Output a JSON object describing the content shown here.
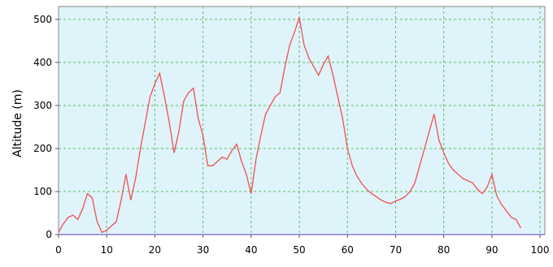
{
  "chart_data": {
    "type": "line",
    "title": "",
    "xlabel": "",
    "ylabel": "Altitude (m)",
    "xlim": [
      0,
      101
    ],
    "ylim": [
      0,
      530
    ],
    "xticks": [
      0,
      10,
      20,
      30,
      40,
      50,
      60,
      70,
      80,
      90,
      100
    ],
    "yticks": [
      0,
      100,
      200,
      300,
      400,
      500
    ],
    "grid": true,
    "legend": "none",
    "colors": {
      "line": "#f05050",
      "plot_background": "#dff3fb",
      "grid": "#5cbf5c",
      "baseline": "#8a7bd8",
      "frame": "#888888"
    },
    "series": [
      {
        "x": [
          0,
          1,
          2,
          3,
          4,
          5,
          6,
          7,
          8,
          9,
          10,
          11,
          12,
          13,
          14,
          15,
          16,
          17,
          18,
          19,
          20,
          21,
          22,
          23,
          24,
          25,
          26,
          27,
          28,
          29,
          30,
          31,
          32,
          33,
          34,
          35,
          36,
          37,
          38,
          39,
          40,
          41,
          42,
          43,
          44,
          45,
          46,
          47,
          48,
          49,
          50,
          51,
          52,
          53,
          54,
          55,
          56,
          57,
          58,
          59,
          60,
          61,
          62,
          63,
          64,
          65,
          66,
          67,
          68,
          69,
          70,
          71,
          72,
          73,
          74,
          75,
          76,
          77,
          78,
          79,
          80,
          81,
          82,
          83,
          84,
          85,
          86,
          87,
          88,
          89,
          90,
          91,
          92,
          93,
          94,
          95,
          96
        ],
        "y": [
          5,
          25,
          40,
          45,
          35,
          60,
          95,
          85,
          30,
          5,
          10,
          20,
          30,
          80,
          140,
          80,
          130,
          200,
          260,
          320,
          350,
          375,
          320,
          260,
          190,
          240,
          310,
          330,
          340,
          270,
          230,
          160,
          160,
          170,
          180,
          175,
          195,
          210,
          170,
          140,
          95,
          175,
          230,
          280,
          300,
          320,
          330,
          390,
          440,
          470,
          505,
          440,
          410,
          390,
          370,
          395,
          415,
          370,
          320,
          270,
          200,
          160,
          135,
          118,
          105,
          95,
          88,
          80,
          75,
          72,
          78,
          82,
          88,
          100,
          120,
          160,
          200,
          240,
          280,
          220,
          190,
          165,
          150,
          140,
          130,
          125,
          120,
          105,
          95,
          110,
          140,
          90,
          70,
          55,
          40,
          35,
          15
        ]
      }
    ]
  }
}
